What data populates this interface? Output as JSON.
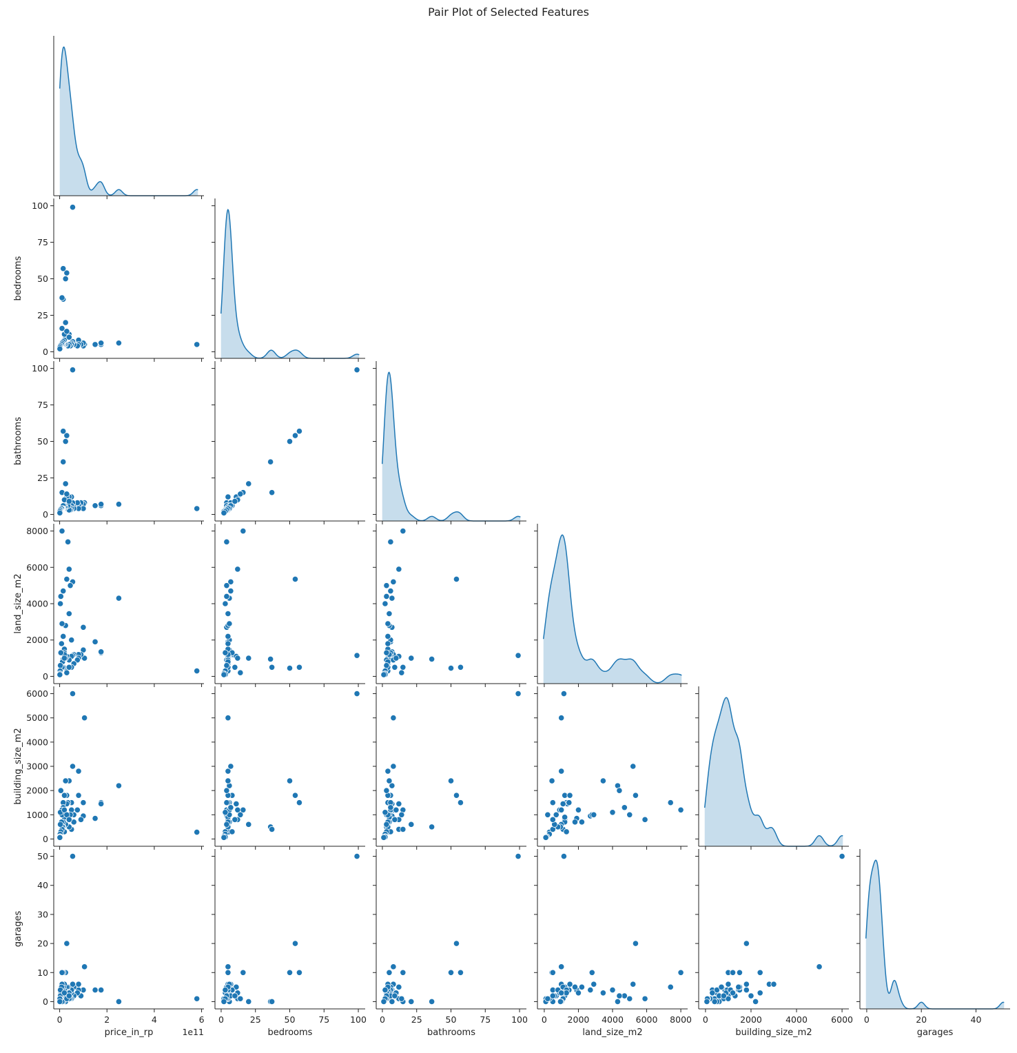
{
  "title": "Pair Plot of Selected Features",
  "chart_data": {
    "type": "scatter",
    "subtype": "pairplot-corner",
    "title": "Pair Plot of Selected Features",
    "marker_color": "#1f77b4",
    "variables": [
      {
        "name": "price_in_rp",
        "label": "price_in_rp",
        "lim": [
          -25000000000.0,
          610000000000.0
        ],
        "ticks": [
          0,
          200000000000.0,
          400000000000.0,
          600000000000.0
        ],
        "tick_labels": [
          "0",
          "2",
          "4",
          "6"
        ],
        "offset_text": "1e11"
      },
      {
        "name": "bedrooms",
        "label": "bedrooms",
        "lim": [
          -4.5,
          105
        ],
        "ticks": [
          0,
          25,
          50,
          75,
          100
        ],
        "tick_labels": [
          "0",
          "25",
          "50",
          "75",
          "100"
        ]
      },
      {
        "name": "bathrooms",
        "label": "bathrooms",
        "lim": [
          -4.5,
          105
        ],
        "ticks": [
          0,
          25,
          50,
          75,
          100
        ],
        "tick_labels": [
          "0",
          "25",
          "50",
          "75",
          "100"
        ]
      },
      {
        "name": "land_size_m2",
        "label": "land_size_m2",
        "lim": [
          -400,
          8400
        ],
        "ticks": [
          0,
          2000,
          4000,
          6000,
          8000
        ],
        "tick_labels": [
          "0",
          "2000",
          "4000",
          "6000",
          "8000"
        ]
      },
      {
        "name": "building_size_m2",
        "label": "building_size_m2",
        "lim": [
          -300,
          6300
        ],
        "ticks": [
          0,
          1000,
          2000,
          3000,
          4000,
          5000,
          6000
        ],
        "tick_labels": [
          "0",
          "1000",
          "2000",
          "3000",
          "4000",
          "5000",
          "6000"
        ]
      },
      {
        "name": "garages",
        "label": "garages",
        "lim": [
          -2.5,
          52.5
        ],
        "ticks": [
          0,
          10,
          20,
          30,
          40,
          50
        ],
        "tick_labels": [
          "0",
          "10",
          "20",
          "30",
          "40",
          "50"
        ]
      }
    ],
    "x_ticks": {
      "price_in_rp": {
        "ticks": [
          0,
          200000000000.0,
          400000000000.0,
          600000000000.0
        ],
        "tick_labels": [
          "0",
          "2",
          "4",
          "6"
        ]
      },
      "bedrooms": {
        "ticks": [
          0,
          25,
          50,
          75,
          100
        ],
        "tick_labels": [
          "0",
          "25",
          "50",
          "75",
          "100"
        ]
      },
      "bathrooms": {
        "ticks": [
          0,
          25,
          50,
          75,
          100
        ],
        "tick_labels": [
          "0",
          "25",
          "50",
          "75",
          "100"
        ]
      },
      "land_size_m2": {
        "ticks": [
          0,
          2000,
          4000,
          6000,
          8000
        ],
        "tick_labels": [
          "0",
          "2000",
          "4000",
          "6000",
          "8000"
        ]
      },
      "building_size_m2": {
        "ticks": [
          0,
          2000,
          4000,
          6000
        ],
        "tick_labels": [
          "0",
          "2000",
          "4000",
          "6000"
        ]
      },
      "garages": {
        "ticks": [
          0,
          20,
          40
        ],
        "tick_labels": [
          "0",
          "20",
          "40"
        ]
      }
    },
    "records": [
      [
        580000000000.0,
        5,
        4,
        300,
        280,
        1
      ],
      [
        250000000000.0,
        6,
        7,
        4300,
        2200,
        0
      ],
      [
        175000000000.0,
        5,
        6,
        1300,
        1500,
        4
      ],
      [
        175000000000.0,
        6,
        7,
        1350,
        1450,
        4
      ],
      [
        150000000000.0,
        5,
        6,
        1900,
        850,
        4
      ],
      [
        105000000000.0,
        5,
        8,
        1000,
        5000,
        12
      ],
      [
        100000000000.0,
        4,
        7,
        2700,
        950,
        4
      ],
      [
        100000000000.0,
        6,
        4,
        1450,
        1500,
        4
      ],
      [
        90000000000.0,
        5,
        8,
        1200,
        800,
        2
      ],
      [
        80000000000.0,
        8,
        6,
        1200,
        1800,
        4
      ],
      [
        80000000000.0,
        5,
        4,
        1000,
        2800,
        6
      ],
      [
        75000000000.0,
        4,
        8,
        900,
        1200,
        3
      ],
      [
        60000000000.0,
        6,
        5,
        1200,
        700,
        5
      ],
      [
        60000000000.0,
        5,
        4,
        700,
        1000,
        2
      ],
      [
        55000000000.0,
        99,
        99,
        1150,
        6000,
        50
      ],
      [
        55000000000.0,
        7,
        8,
        5200,
        3000,
        6
      ],
      [
        50000000000.0,
        5,
        12,
        1100,
        400,
        1
      ],
      [
        50000000000.0,
        6,
        6,
        2000,
        1200,
        3
      ],
      [
        50000000000.0,
        5,
        4,
        500,
        1500,
        4
      ],
      [
        45000000000.0,
        4,
        3,
        5000,
        1000,
        1
      ],
      [
        40000000000.0,
        12,
        12,
        5900,
        800,
        1
      ],
      [
        40000000000.0,
        5,
        5,
        3450,
        2400,
        3
      ],
      [
        40000000000.0,
        5,
        3,
        900,
        500,
        3
      ],
      [
        35000000000.0,
        4,
        6,
        7400,
        1500,
        5
      ],
      [
        30000000000.0,
        54,
        54,
        5350,
        1800,
        20
      ],
      [
        30000000000.0,
        11,
        12,
        1100,
        1450,
        5
      ],
      [
        25000000000.0,
        20,
        21,
        1000,
        600,
        0
      ],
      [
        25000000000.0,
        50,
        50,
        450,
        2400,
        10
      ],
      [
        25000000000.0,
        5,
        5,
        2800,
        1000,
        10
      ],
      [
        20000000000.0,
        5,
        4,
        1500,
        1800,
        6
      ],
      [
        20000000000.0,
        8,
        6,
        1300,
        300,
        4
      ],
      [
        20000000000.0,
        5,
        5,
        1200,
        900,
        3
      ],
      [
        15000000000.0,
        57,
        57,
        500,
        1500,
        10
      ],
      [
        15000000000.0,
        7,
        6,
        4700,
        1300,
        2
      ],
      [
        15000000000.0,
        36,
        36,
        950,
        500,
        0
      ],
      [
        15000000000.0,
        5,
        4,
        2200,
        700,
        5
      ],
      [
        12000000000.0,
        5,
        4,
        800,
        500,
        4
      ],
      [
        10000000000.0,
        37,
        15,
        500,
        400,
        0
      ],
      [
        10000000000.0,
        16,
        15,
        8000,
        1200,
        10
      ],
      [
        10000000000.0,
        6,
        4,
        2900,
        1000,
        6
      ],
      [
        8000000000.0,
        5,
        4,
        1800,
        700,
        5
      ],
      [
        5000000000.0,
        4,
        3,
        4400,
        2000,
        2
      ],
      [
        5000000000.0,
        3,
        3,
        1300,
        300,
        3
      ],
      [
        3000000000.0,
        3,
        2,
        4000,
        1100,
        4
      ],
      [
        3000000000.0,
        4,
        3,
        600,
        600,
        2
      ],
      [
        2000000000.0,
        3,
        2,
        300,
        200,
        1
      ],
      [
        1500000000.0,
        2,
        2,
        150,
        100,
        1
      ],
      [
        1000000000.0,
        3,
        2,
        100,
        80,
        1
      ],
      [
        800000000.0,
        2,
        1,
        90,
        60,
        0
      ],
      [
        20000000000.0,
        12,
        10,
        1000,
        1200,
        3
      ],
      [
        30000000000.0,
        14,
        14,
        200,
        1000,
        1
      ],
      [
        40000000000.0,
        10,
        9,
        500,
        800,
        2
      ]
    ],
    "diagonal": "kde",
    "corner": true,
    "grid": false
  }
}
